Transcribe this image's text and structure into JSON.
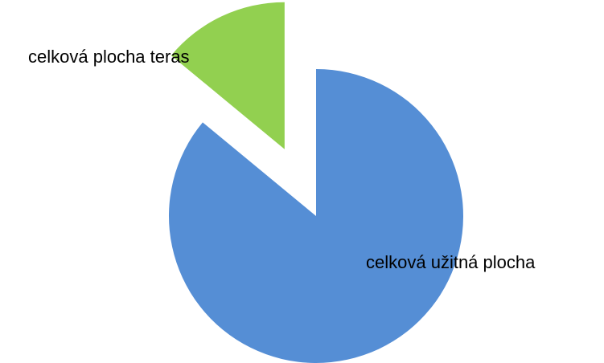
{
  "chart_data": {
    "type": "pie",
    "categories": [
      "celková užitná plocha",
      "celková plocha teras"
    ],
    "values": [
      86,
      14
    ],
    "colors": [
      "#558ed5",
      "#92d050"
    ]
  }
}
